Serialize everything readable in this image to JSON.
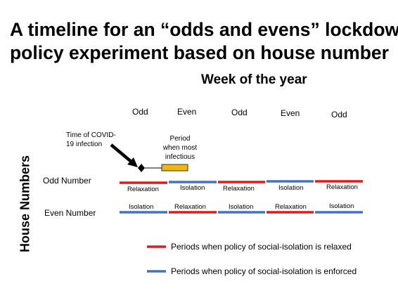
{
  "title_line1": "A timeline for an “odds and evens” lockdown",
  "title_line2": "policy experiment based on house number",
  "week_heading": "Week of the year",
  "weeks": [
    "Odd",
    "Even",
    "Odd",
    "Even",
    "Odd"
  ],
  "annotations": {
    "infection_line1": "Time of COVID-",
    "infection_line2": "19 infection",
    "infectious_line1": "Period",
    "infectious_line2": "when most",
    "infectious_line3": "infectious"
  },
  "y_axis_label": "House Numbers",
  "rows": [
    {
      "label": "Odd Number",
      "segments": [
        "Relaxation",
        "Isolation",
        "Relaxation",
        "Isolation",
        "Relaxation"
      ],
      "colors": [
        "red",
        "blue",
        "red",
        "blue",
        "red"
      ]
    },
    {
      "label": "Even Number",
      "segments": [
        "Isolation",
        "Relaxation",
        "Isolation",
        "Relaxation",
        "Isolation"
      ],
      "colors": [
        "blue",
        "red",
        "blue",
        "red",
        "blue"
      ]
    }
  ],
  "legend": {
    "relaxed": "Periods when policy of social-isolation is relaxed",
    "enforced": "Periods when policy of social-isolation is enforced"
  },
  "colors": {
    "red": "#e01b1b",
    "blue": "#4472c4",
    "infectious_fill": "#f2b705",
    "infectious_border": "#333333"
  }
}
